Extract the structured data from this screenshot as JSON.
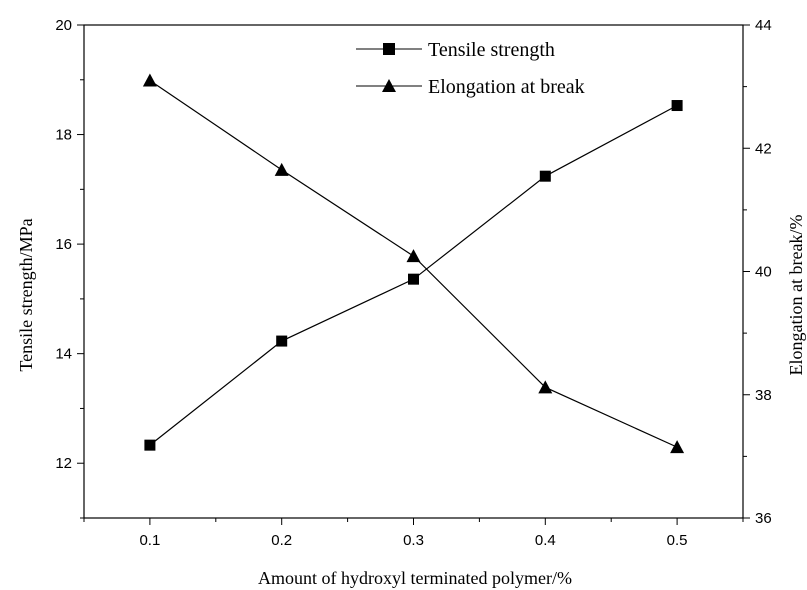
{
  "chart_data": {
    "type": "line",
    "x": [
      0.1,
      0.2,
      0.3,
      0.4,
      0.5
    ],
    "x_tick_labels": [
      "0.1",
      "0.2",
      "0.3",
      "0.4",
      "0.5"
    ],
    "xlabel": "Amount of hydroxyl terminated polymer/%",
    "xlim": [
      0.05,
      0.55
    ],
    "left_axis": {
      "label": "Tensile strength/MPa",
      "ylim": [
        11,
        20
      ],
      "ticks": [
        12,
        14,
        16,
        18,
        20
      ],
      "tick_labels": [
        "12",
        "14",
        "16",
        "18",
        "20"
      ]
    },
    "right_axis": {
      "label": "Elongation at break/%",
      "ylim": [
        36,
        44
      ],
      "ticks": [
        36,
        38,
        40,
        42,
        44
      ],
      "tick_labels": [
        "36",
        "38",
        "40",
        "42",
        "44"
      ]
    },
    "series": [
      {
        "name": "Tensile strength",
        "axis": "left",
        "marker": "square",
        "values": [
          12.33,
          14.23,
          15.36,
          17.24,
          18.53
        ]
      },
      {
        "name": "Elongation at break",
        "axis": "right",
        "marker": "triangle",
        "values": [
          43.1,
          41.65,
          40.25,
          38.12,
          37.15
        ]
      }
    ],
    "legend_position": "top-right",
    "grid": false,
    "colors": {
      "line": "#000000",
      "marker": "#000000"
    }
  }
}
